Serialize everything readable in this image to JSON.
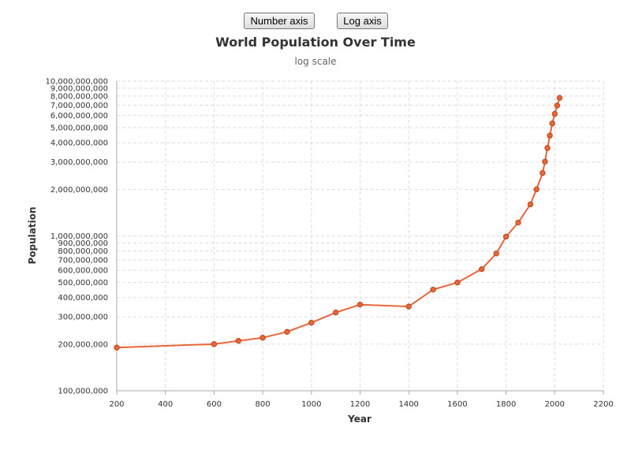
{
  "buttons": {
    "number_axis": "Number axis",
    "log_axis": "Log axis"
  },
  "chart_data": {
    "type": "line",
    "title": "World Population Over Time",
    "subtitle": "log scale",
    "xlabel": "Year",
    "ylabel": "Population",
    "xscale": "linear",
    "yscale": "log",
    "xlim": [
      200,
      2200
    ],
    "ylim": [
      100000000,
      10000000000
    ],
    "grid": true,
    "line_color": "#e8663a",
    "marker_color": "#e8663a",
    "marker_stroke": "#b8461e",
    "x_ticks": [
      200,
      400,
      600,
      800,
      1000,
      1200,
      1400,
      1600,
      1800,
      2000,
      2200
    ],
    "x_tick_labels": [
      "200",
      "400",
      "600",
      "800",
      "1000",
      "1200",
      "1400",
      "1600",
      "1800",
      "2000",
      "2200"
    ],
    "y_ticks": [
      100000000,
      200000000,
      300000000,
      400000000,
      500000000,
      600000000,
      700000000,
      800000000,
      900000000,
      1000000000,
      2000000000,
      3000000000,
      4000000000,
      5000000000,
      6000000000,
      7000000000,
      8000000000,
      9000000000,
      10000000000
    ],
    "y_tick_labels": [
      "100,000,000",
      "200,000,000",
      "300,000,000",
      "400,000,000",
      "500,000,000",
      "600,000,000",
      "700,000,000",
      "800,000,000",
      "900,000,000",
      "1,000,000,000",
      "2,000,000,000",
      "3,000,000,000",
      "4,000,000,000",
      "5,000,000,000",
      "6,000,000,000",
      "7,000,000,000",
      "8,000,000,000",
      "9,000,000,000",
      "10,000,000,000"
    ],
    "points": [
      {
        "x": 200,
        "y": 190000000
      },
      {
        "x": 600,
        "y": 200000000
      },
      {
        "x": 700,
        "y": 210000000
      },
      {
        "x": 800,
        "y": 220000000
      },
      {
        "x": 900,
        "y": 240000000
      },
      {
        "x": 1000,
        "y": 275000000
      },
      {
        "x": 1100,
        "y": 320000000
      },
      {
        "x": 1200,
        "y": 360000000
      },
      {
        "x": 1400,
        "y": 350000000
      },
      {
        "x": 1500,
        "y": 450000000
      },
      {
        "x": 1600,
        "y": 500000000
      },
      {
        "x": 1700,
        "y": 610000000
      },
      {
        "x": 1760,
        "y": 770000000
      },
      {
        "x": 1800,
        "y": 990000000
      },
      {
        "x": 1850,
        "y": 1220000000
      },
      {
        "x": 1900,
        "y": 1600000000
      },
      {
        "x": 1925,
        "y": 2000000000
      },
      {
        "x": 1950,
        "y": 2550000000
      },
      {
        "x": 1960,
        "y": 3020000000
      },
      {
        "x": 1970,
        "y": 3700000000
      },
      {
        "x": 1980,
        "y": 4450000000
      },
      {
        "x": 1990,
        "y": 5330000000
      },
      {
        "x": 2000,
        "y": 6140000000
      },
      {
        "x": 2010,
        "y": 6960000000
      },
      {
        "x": 2020,
        "y": 7800000000
      }
    ]
  }
}
